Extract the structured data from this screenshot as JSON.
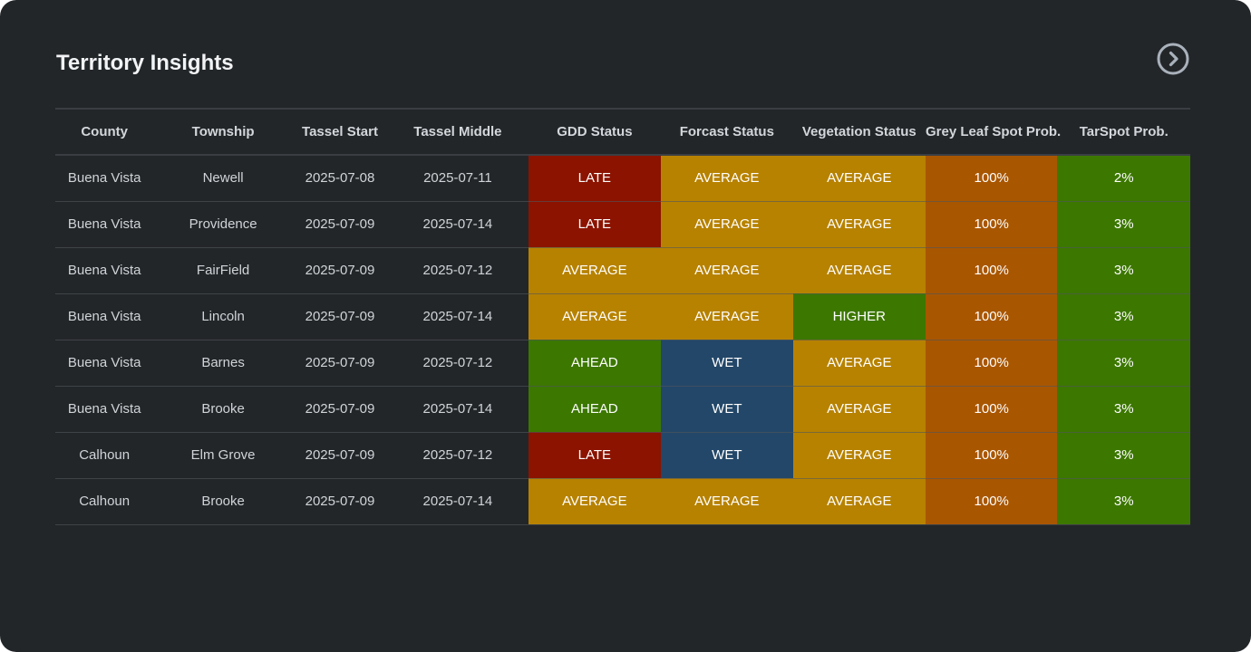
{
  "title": "Territory Insights",
  "next_icon": "chevron-right-circle-icon",
  "colors": {
    "LATE": "#8b1300",
    "AVERAGE": "#b78200",
    "AHEAD": "#3c7700",
    "HIGHER": "#3c7700",
    "WET": "#234768",
    "grey_leaf": "#a95600",
    "tarspot": "#3c7700"
  },
  "table": {
    "headers": [
      "County",
      "Township",
      "Tassel Start",
      "Tassel Middle",
      "GDD Status",
      "Forcast Status",
      "Vegetation Status",
      "Grey Leaf Spot Prob.",
      "TarSpot Prob."
    ],
    "rows": [
      [
        "Buena Vista",
        "Newell",
        "2025-07-08",
        "2025-07-11",
        "LATE",
        "AVERAGE",
        "AVERAGE",
        "100%",
        "2%"
      ],
      [
        "Buena Vista",
        "Providence",
        "2025-07-09",
        "2025-07-14",
        "LATE",
        "AVERAGE",
        "AVERAGE",
        "100%",
        "3%"
      ],
      [
        "Buena Vista",
        "FairField",
        "2025-07-09",
        "2025-07-12",
        "AVERAGE",
        "AVERAGE",
        "AVERAGE",
        "100%",
        "3%"
      ],
      [
        "Buena Vista",
        "Lincoln",
        "2025-07-09",
        "2025-07-14",
        "AVERAGE",
        "AVERAGE",
        "HIGHER",
        "100%",
        "3%"
      ],
      [
        "Buena Vista",
        "Barnes",
        "2025-07-09",
        "2025-07-12",
        "AHEAD",
        "WET",
        "AVERAGE",
        "100%",
        "3%"
      ],
      [
        "Buena Vista",
        "Brooke",
        "2025-07-09",
        "2025-07-14",
        "AHEAD",
        "WET",
        "AVERAGE",
        "100%",
        "3%"
      ],
      [
        "Calhoun",
        "Elm Grove",
        "2025-07-09",
        "2025-07-12",
        "LATE",
        "WET",
        "AVERAGE",
        "100%",
        "3%"
      ],
      [
        "Calhoun",
        "Brooke",
        "2025-07-09",
        "2025-07-14",
        "AVERAGE",
        "AVERAGE",
        "AVERAGE",
        "100%",
        "3%"
      ]
    ]
  }
}
